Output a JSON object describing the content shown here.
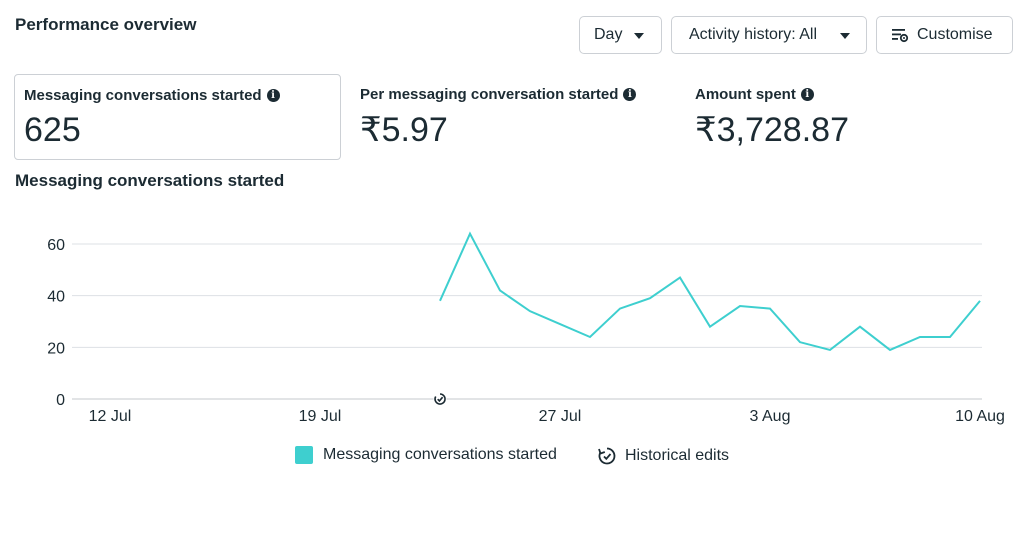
{
  "header": {
    "title": "Performance overview"
  },
  "toolbar": {
    "day_label": "Day",
    "activity_label": "Activity history: All",
    "customise_label": "Customise"
  },
  "metrics": [
    {
      "label": "Messaging conversations started",
      "value": "625",
      "selected": true
    },
    {
      "label": "Per messaging conversation started",
      "value": "₹5.97"
    },
    {
      "label": "Amount spent",
      "value": "₹3,728.87"
    }
  ],
  "chart_title": "Messaging conversations started",
  "colors": {
    "series": "#3ecfcf",
    "grid": "#dde0e4",
    "text": "#1c2b33"
  },
  "chart_data": {
    "type": "line",
    "title": "Messaging conversations started",
    "xlabel": "",
    "ylabel": "",
    "ylim": [
      0,
      60
    ],
    "yticks": [
      0,
      20,
      40,
      60
    ],
    "xticks": [
      {
        "label": "12 Jul",
        "day": 0
      },
      {
        "label": "19 Jul",
        "day": 7
      },
      {
        "label": "27 Jul",
        "day": 15
      },
      {
        "label": "3 Aug",
        "day": 22
      },
      {
        "label": "10 Aug",
        "day": 29
      }
    ],
    "grid": true,
    "legend_position": "bottom",
    "series": [
      {
        "name": "Messaging conversations started",
        "x": [
          "23 Jul",
          "24 Jul",
          "25 Jul",
          "26 Jul",
          "27 Jul",
          "28 Jul",
          "29 Jul",
          "30 Jul",
          "31 Jul",
          "1 Aug",
          "2 Aug",
          "3 Aug",
          "4 Aug",
          "5 Aug",
          "6 Aug",
          "7 Aug",
          "8 Aug",
          "9 Aug",
          "10 Aug"
        ],
        "days": [
          11,
          12,
          13,
          14,
          15,
          16,
          17,
          18,
          19,
          20,
          21,
          22,
          23,
          24,
          25,
          26,
          27,
          28,
          29
        ],
        "values": [
          38,
          64,
          42,
          34,
          29,
          24,
          35,
          39,
          47,
          28,
          36,
          35,
          22,
          19,
          28,
          19,
          24,
          24,
          38
        ]
      }
    ],
    "historical_edit_marker_day": 11,
    "legend": [
      {
        "label": "Messaging conversations started",
        "kind": "swatch"
      },
      {
        "label": "Historical edits",
        "kind": "icon"
      }
    ]
  }
}
